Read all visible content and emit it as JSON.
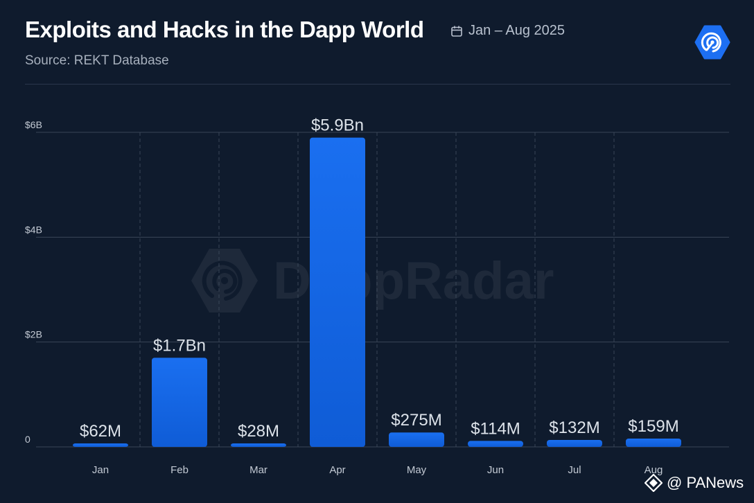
{
  "header": {
    "title": "Exploits and Hacks in the Dapp World",
    "date_range": "Jan – Aug 2025",
    "source": "Source: REKT Database"
  },
  "watermark": {
    "text": "DappRadar"
  },
  "footer": {
    "credit": "@ PANews"
  },
  "colors": {
    "background": "#0f1b2d",
    "bar_top": "#1a6ff0",
    "bar_bottom": "#0f5cd6",
    "grid": "#3a4658",
    "axis_text": "#c3cad4",
    "label_text": "#dde3ea",
    "brand": "#1d6ff2"
  },
  "icons": {
    "date": "calendar-icon",
    "brand": "dappradar-logo-icon",
    "footer": "panews-logo-icon"
  },
  "chart_data": {
    "type": "bar",
    "title": "Exploits and Hacks in the Dapp World",
    "categories": [
      "Jan",
      "Feb",
      "Mar",
      "Apr",
      "May",
      "Jun",
      "Jul",
      "Aug"
    ],
    "values": [
      0.062,
      1.7,
      0.028,
      5.9,
      0.275,
      0.114,
      0.132,
      0.159
    ],
    "value_unit": "billion USD",
    "data_labels": [
      "$62M",
      "$1.7Bn",
      "$28M",
      "$5.9Bn",
      "$275M",
      "$114M",
      "$132M",
      "$159M"
    ],
    "y_ticks": [
      0,
      2,
      4,
      6
    ],
    "y_tick_labels": [
      "0",
      "$2B",
      "$4B",
      "$6B"
    ],
    "ylim": [
      0,
      6
    ],
    "xlabel": "",
    "ylabel": "",
    "grid": true
  }
}
